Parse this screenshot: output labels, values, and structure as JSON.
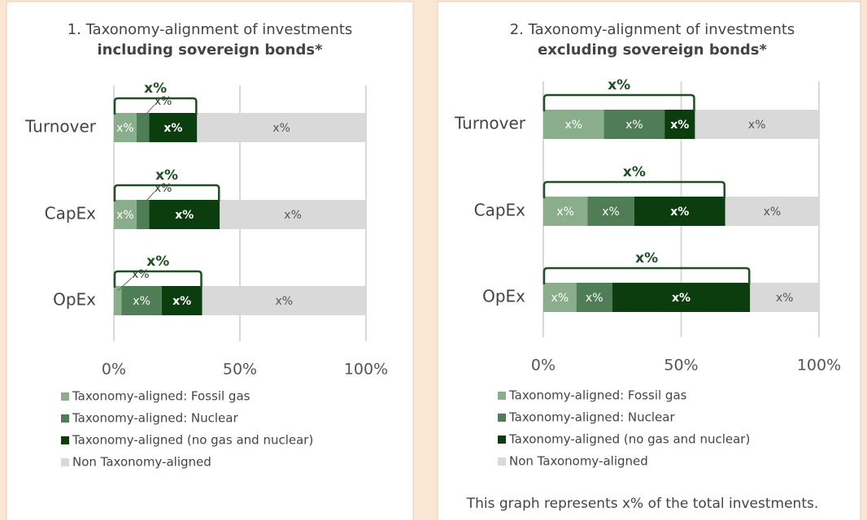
{
  "chart_data": [
    {
      "type": "bar",
      "orientation": "horizontal",
      "stacked": true,
      "title": "1. Taxonomy-alignment of investments",
      "subtitle": "including sovereign bonds*",
      "categories": [
        "Turnover",
        "CapEx",
        "OpEx"
      ],
      "series": [
        {
          "name": "Taxonomy-aligned: Fossil gas",
          "color": "#8aae8c",
          "values": [
            9,
            9,
            3
          ],
          "value_labels": [
            "x%",
            "x%",
            "x%"
          ]
        },
        {
          "name": "Taxonomy-aligned: Nuclear",
          "color": "#4f7d55",
          "values": [
            5,
            5,
            16
          ],
          "value_labels": [
            "x%",
            "x%",
            "x%"
          ]
        },
        {
          "name": "Taxonomy-aligned (no gas and nuclear)",
          "color": "#0b3d0e",
          "values": [
            19,
            28,
            16
          ],
          "value_labels": [
            "x%",
            "x%",
            "x%"
          ]
        },
        {
          "name": "Non Taxonomy-aligned",
          "color": "#d9d9d9",
          "values": [
            67,
            58,
            65
          ],
          "value_labels": [
            "x%",
            "x%",
            "x%"
          ]
        }
      ],
      "brackets": {
        "values": [
          33,
          42,
          35
        ],
        "value_labels": [
          "x%",
          "x%",
          "x%"
        ]
      },
      "xlim": [
        0,
        100
      ],
      "xticks": [
        {
          "value": 0,
          "label": "0%"
        },
        {
          "value": 50,
          "label": "50%"
        },
        {
          "value": 100,
          "label": "100%"
        }
      ],
      "grid": true
    },
    {
      "type": "bar",
      "orientation": "horizontal",
      "stacked": true,
      "title": "2. Taxonomy-alignment of investments",
      "subtitle": "excluding sovereign bonds*",
      "categories": [
        "Turnover",
        "CapEx",
        "OpEx"
      ],
      "series": [
        {
          "name": "Taxonomy-aligned: Fossil gas",
          "color": "#8aae8c",
          "values": [
            22,
            16,
            12
          ],
          "value_labels": [
            "x%",
            "x%",
            "x%"
          ]
        },
        {
          "name": "Taxonomy-aligned: Nuclear",
          "color": "#4f7d55",
          "values": [
            22,
            17,
            13
          ],
          "value_labels": [
            "x%",
            "x%",
            "x%"
          ]
        },
        {
          "name": "Taxonomy-aligned (no gas and nuclear)",
          "color": "#0b3d0e",
          "values": [
            11,
            33,
            50
          ],
          "value_labels": [
            "x%",
            "x%",
            "x%"
          ]
        },
        {
          "name": "Non Taxonomy-aligned",
          "color": "#d9d9d9",
          "values": [
            45,
            34,
            25
          ],
          "value_labels": [
            "x%",
            "x%",
            "x%"
          ]
        }
      ],
      "brackets": {
        "values": [
          55,
          66,
          75
        ],
        "value_labels": [
          "x%",
          "x%",
          "x%"
        ]
      },
      "xlim": [
        0,
        100
      ],
      "xticks": [
        {
          "value": 0,
          "label": "0%"
        },
        {
          "value": 50,
          "label": "50%"
        },
        {
          "value": 100,
          "label": "100%"
        }
      ],
      "grid": true,
      "footnote": "This graph represents x% of the total investments."
    }
  ]
}
